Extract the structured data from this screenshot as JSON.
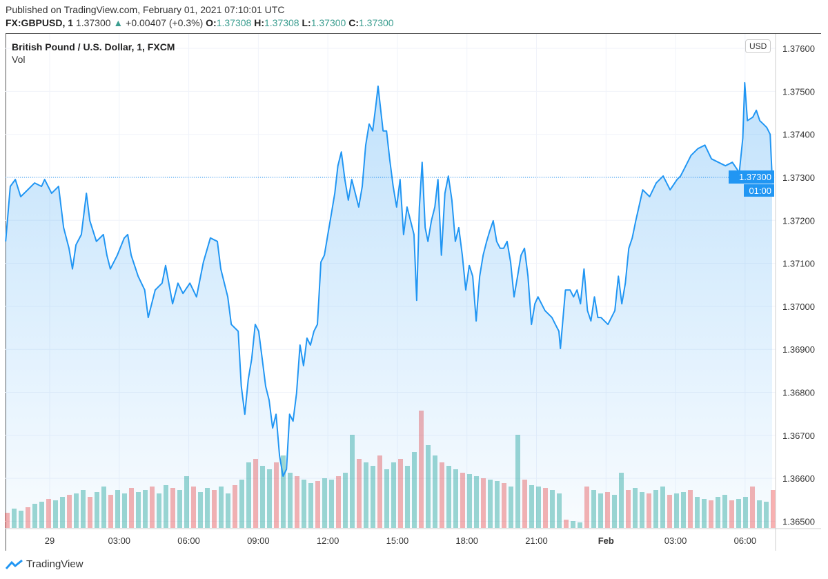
{
  "header": {
    "published": "Published on TradingView.com, February 01, 2021 07:10:01 UTC",
    "symbol": "FX:GBPUSD, 1",
    "last": "1.37300",
    "change": "+0.00407 (+0.3%)",
    "o_label": "O:",
    "o": "1.37308",
    "h_label": "H:",
    "h": "1.37308",
    "l_label": "L:",
    "l": "1.37300",
    "c_label": "C:",
    "c": "1.37300",
    "direction_icon": "triangle-up-icon"
  },
  "legend": {
    "title": "British Pound / U.S. Dollar, 1, FXCM",
    "vol": "Vol"
  },
  "currency_badge": "USD",
  "last_price_label": "1.37300",
  "countdown_label": "01:00",
  "brand": "TradingView",
  "colors": {
    "line": "#2196f3",
    "up": "#26a69a",
    "down": "#ef5350",
    "values": "#3a9d8f"
  },
  "chart_data": {
    "type": "area",
    "title": "British Pound / U.S. Dollar, 1, FXCM",
    "ylim": [
      1.3645,
      1.3762
    ],
    "grid": true,
    "y_ticks": [
      "1.36500",
      "1.36600",
      "1.36700",
      "1.36800",
      "1.36900",
      "1.37000",
      "1.37100",
      "1.37200",
      "1.37300",
      "1.37400",
      "1.37500",
      "1.37600"
    ],
    "x_ticks": [
      {
        "label": "29",
        "t": "01-29 00:00"
      },
      {
        "label": "03:00",
        "t": "01-29 03:00"
      },
      {
        "label": "06:00",
        "t": "01-29 06:00"
      },
      {
        "label": "09:00",
        "t": "01-29 09:00"
      },
      {
        "label": "12:00",
        "t": "01-29 12:00"
      },
      {
        "label": "15:00",
        "t": "01-29 15:00"
      },
      {
        "label": "18:00",
        "t": "01-29 18:00"
      },
      {
        "label": "21:00",
        "t": "01-29 21:00"
      },
      {
        "label": "Feb",
        "t": "02-01 00:00"
      },
      {
        "label": "03:00",
        "t": "02-01 03:00"
      },
      {
        "label": "06:00",
        "t": "02-01 06:00"
      }
    ],
    "series": [
      {
        "points": [
          [
            "01-28 22:06",
            1.37151
          ],
          [
            "01-28 22:18",
            1.37279
          ],
          [
            "01-28 22:31",
            1.37295
          ],
          [
            "01-28 22:45",
            1.37255
          ],
          [
            "01-28 23:03",
            1.37271
          ],
          [
            "01-28 23:21",
            1.37287
          ],
          [
            "01-28 23:39",
            1.37279
          ],
          [
            "01-28 23:47",
            1.37295
          ],
          [
            "01-29 00:05",
            1.37263
          ],
          [
            "01-29 00:23",
            1.37279
          ],
          [
            "01-29 00:36",
            1.37183
          ],
          [
            "01-29 00:50",
            1.37135
          ],
          [
            "01-29 00:59",
            1.37087
          ],
          [
            "01-29 01:08",
            1.37143
          ],
          [
            "01-29 01:22",
            1.37167
          ],
          [
            "01-29 01:35",
            1.37263
          ],
          [
            "01-29 01:44",
            1.37199
          ],
          [
            "01-29 02:01",
            1.37151
          ],
          [
            "01-29 02:19",
            1.37167
          ],
          [
            "01-29 02:28",
            1.37119
          ],
          [
            "01-29 02:37",
            1.37087
          ],
          [
            "01-29 02:55",
            1.37119
          ],
          [
            "01-29 03:13",
            1.37159
          ],
          [
            "01-29 03:22",
            1.37167
          ],
          [
            "01-29 03:31",
            1.37119
          ],
          [
            "01-29 03:49",
            1.3707
          ],
          [
            "01-29 04:06",
            1.37038
          ],
          [
            "01-29 04:15",
            1.36974
          ],
          [
            "01-29 04:33",
            1.37038
          ],
          [
            "01-29 04:51",
            1.37054
          ],
          [
            "01-29 05:00",
            1.37095
          ],
          [
            "01-29 05:18",
            1.37006
          ],
          [
            "01-29 05:32",
            1.37054
          ],
          [
            "01-29 05:45",
            1.3703
          ],
          [
            "01-29 06:03",
            1.37054
          ],
          [
            "01-29 06:20",
            1.37022
          ],
          [
            "01-29 06:38",
            1.37103
          ],
          [
            "01-29 06:56",
            1.37159
          ],
          [
            "01-29 07:14",
            1.37151
          ],
          [
            "01-29 07:23",
            1.37087
          ],
          [
            "01-29 07:32",
            1.37054
          ],
          [
            "01-29 07:41",
            1.37022
          ],
          [
            "01-29 07:50",
            1.36958
          ],
          [
            "01-29 08:08",
            1.36942
          ],
          [
            "01-29 08:16",
            1.36814
          ],
          [
            "01-29 08:25",
            1.36749
          ],
          [
            "01-29 08:34",
            1.3683
          ],
          [
            "01-29 08:43",
            1.36878
          ],
          [
            "01-29 08:52",
            1.36958
          ],
          [
            "01-29 09:01",
            1.36942
          ],
          [
            "01-29 09:10",
            1.36878
          ],
          [
            "01-29 09:19",
            1.36814
          ],
          [
            "01-29 09:28",
            1.36782
          ],
          [
            "01-29 09:37",
            1.36717
          ],
          [
            "01-29 09:46",
            1.36749
          ],
          [
            "01-29 09:55",
            1.36653
          ],
          [
            "01-29 10:04",
            1.36605
          ],
          [
            "01-29 10:13",
            1.36621
          ],
          [
            "01-29 10:21",
            1.36749
          ],
          [
            "01-29 10:30",
            1.36733
          ],
          [
            "01-29 10:39",
            1.36798
          ],
          [
            "01-29 10:48",
            1.3691
          ],
          [
            "01-29 10:57",
            1.36862
          ],
          [
            "01-29 11:06",
            1.36926
          ],
          [
            "01-29 11:15",
            1.3691
          ],
          [
            "01-29 11:24",
            1.36942
          ],
          [
            "01-29 11:33",
            1.36958
          ],
          [
            "01-29 11:42",
            1.37103
          ],
          [
            "01-29 11:51",
            1.37119
          ],
          [
            "01-29 12:00",
            1.37167
          ],
          [
            "01-29 12:09",
            1.37215
          ],
          [
            "01-29 12:18",
            1.37263
          ],
          [
            "01-29 12:26",
            1.37327
          ],
          [
            "01-29 12:35",
            1.37359
          ],
          [
            "01-29 12:44",
            1.37295
          ],
          [
            "01-29 12:53",
            1.37247
          ],
          [
            "01-29 13:02",
            1.37295
          ],
          [
            "01-29 13:11",
            1.37263
          ],
          [
            "01-29 13:20",
            1.37231
          ],
          [
            "01-29 13:29",
            1.37279
          ],
          [
            "01-29 13:38",
            1.37375
          ],
          [
            "01-29 13:47",
            1.37424
          ],
          [
            "01-29 13:56",
            1.37408
          ],
          [
            "01-29 14:05",
            1.37472
          ],
          [
            "01-29 14:10",
            1.37512
          ],
          [
            "01-29 14:23",
            1.37408
          ],
          [
            "01-29 14:32",
            1.37408
          ],
          [
            "01-29 14:40",
            1.37343
          ],
          [
            "01-29 14:49",
            1.37279
          ],
          [
            "01-29 14:58",
            1.37231
          ],
          [
            "01-29 15:07",
            1.37295
          ],
          [
            "01-29 15:16",
            1.37167
          ],
          [
            "01-29 15:25",
            1.37231
          ],
          [
            "01-29 15:34",
            1.37199
          ],
          [
            "01-29 15:43",
            1.37167
          ],
          [
            "01-29 15:50",
            1.37014
          ],
          [
            "01-29 15:57",
            1.37231
          ],
          [
            "01-29 16:04",
            1.37335
          ],
          [
            "01-29 16:12",
            1.37183
          ],
          [
            "01-29 16:19",
            1.37151
          ],
          [
            "01-29 16:28",
            1.37199
          ],
          [
            "01-29 16:37",
            1.37231
          ],
          [
            "01-29 16:45",
            1.37295
          ],
          [
            "01-29 16:54",
            1.37119
          ],
          [
            "01-29 17:03",
            1.37263
          ],
          [
            "01-29 17:12",
            1.37303
          ],
          [
            "01-29 17:21",
            1.37247
          ],
          [
            "01-29 17:30",
            1.37151
          ],
          [
            "01-29 17:39",
            1.37183
          ],
          [
            "01-29 17:48",
            1.37119
          ],
          [
            "01-29 17:57",
            1.37038
          ],
          [
            "01-29 18:06",
            1.37095
          ],
          [
            "01-29 18:15",
            1.3707
          ],
          [
            "01-29 18:24",
            1.36966
          ],
          [
            "01-29 18:33",
            1.3707
          ],
          [
            "01-29 18:42",
            1.37119
          ],
          [
            "01-29 18:51",
            1.37151
          ],
          [
            "01-29 18:59",
            1.37175
          ],
          [
            "01-29 19:08",
            1.37199
          ],
          [
            "01-29 19:17",
            1.37151
          ],
          [
            "01-29 19:26",
            1.37135
          ],
          [
            "01-29 19:35",
            1.37135
          ],
          [
            "01-29 19:44",
            1.37151
          ],
          [
            "01-29 19:53",
            1.37103
          ],
          [
            "01-29 20:02",
            1.37022
          ],
          [
            "01-29 20:11",
            1.3707
          ],
          [
            "01-29 20:20",
            1.37119
          ],
          [
            "01-29 20:29",
            1.37135
          ],
          [
            "01-29 20:38",
            1.3707
          ],
          [
            "01-29 20:47",
            1.36958
          ],
          [
            "01-29 20:56",
            1.37006
          ],
          [
            "01-29 21:04",
            1.37022
          ],
          [
            "01-29 21:22",
            1.3699
          ],
          [
            "01-29 21:40",
            1.36974
          ],
          [
            "01-29 21:49",
            1.36958
          ],
          [
            "01-29 21:58",
            1.36942
          ],
          [
            "01-31 22:02",
            1.36902
          ],
          [
            "01-31 22:15",
            1.37038
          ],
          [
            "01-31 22:27",
            1.37038
          ],
          [
            "01-31 22:36",
            1.37022
          ],
          [
            "01-31 22:45",
            1.37038
          ],
          [
            "01-31 22:54",
            1.37006
          ],
          [
            "01-31 23:03",
            1.37087
          ],
          [
            "01-31 23:12",
            1.3699
          ],
          [
            "01-31 23:21",
            1.36966
          ],
          [
            "01-31 23:30",
            1.37022
          ],
          [
            "01-31 23:39",
            1.36974
          ],
          [
            "01-31 23:47",
            1.36974
          ],
          [
            "02-01 00:05",
            1.36958
          ],
          [
            "02-01 00:23",
            1.3699
          ],
          [
            "02-01 00:32",
            1.3707
          ],
          [
            "02-01 00:41",
            1.37006
          ],
          [
            "02-01 00:50",
            1.37054
          ],
          [
            "02-01 00:59",
            1.37135
          ],
          [
            "02-01 01:08",
            1.37159
          ],
          [
            "02-01 01:17",
            1.37199
          ],
          [
            "02-01 01:35",
            1.37271
          ],
          [
            "02-01 01:53",
            1.37255
          ],
          [
            "02-01 02:10",
            1.37287
          ],
          [
            "02-01 02:28",
            1.37303
          ],
          [
            "02-01 02:46",
            1.37271
          ],
          [
            "02-01 03:04",
            1.37295
          ],
          [
            "02-01 03:13",
            1.37303
          ],
          [
            "02-01 03:22",
            1.37319
          ],
          [
            "02-01 03:40",
            1.37351
          ],
          [
            "02-01 03:58",
            1.37367
          ],
          [
            "02-01 04:16",
            1.37375
          ],
          [
            "02-01 04:33",
            1.37343
          ],
          [
            "02-01 04:51",
            1.37335
          ],
          [
            "02-01 05:09",
            1.37327
          ],
          [
            "02-01 05:27",
            1.37335
          ],
          [
            "02-01 05:45",
            1.37311
          ],
          [
            "02-01 05:54",
            1.37391
          ],
          [
            "02-01 05:59",
            1.3752
          ],
          [
            "02-01 06:06",
            1.37432
          ],
          [
            "02-01 06:20",
            1.3744
          ],
          [
            "02-01 06:29",
            1.37456
          ],
          [
            "02-01 06:38",
            1.37432
          ],
          [
            "02-01 06:47",
            1.37424
          ],
          [
            "02-01 06:56",
            1.37416
          ],
          [
            "02-01 07:05",
            1.374
          ],
          [
            "02-01 07:10",
            1.373
          ]
        ]
      }
    ],
    "volume": [
      22,
      28,
      25,
      30,
      35,
      38,
      42,
      40,
      45,
      48,
      50,
      55,
      45,
      52,
      60,
      48,
      55,
      50,
      58,
      52,
      55,
      60,
      50,
      62,
      58,
      55,
      75,
      60,
      52,
      58,
      55,
      60,
      50,
      62,
      70,
      95,
      100,
      90,
      85,
      95,
      105,
      80,
      75,
      70,
      65,
      68,
      72,
      70,
      75,
      80,
      135,
      100,
      95,
      90,
      105,
      85,
      95,
      100,
      90,
      110,
      170,
      120,
      105,
      95,
      90,
      85,
      80,
      78,
      75,
      72,
      70,
      68,
      65,
      60,
      135,
      70,
      62,
      60,
      58,
      55,
      50,
      12,
      10,
      8,
      60,
      55,
      50,
      52,
      48,
      80,
      55,
      58,
      52,
      50,
      55,
      60,
      48,
      50,
      52,
      55,
      45,
      42,
      40,
      45,
      48,
      40,
      42,
      45,
      60,
      40,
      38,
      55
    ]
  }
}
